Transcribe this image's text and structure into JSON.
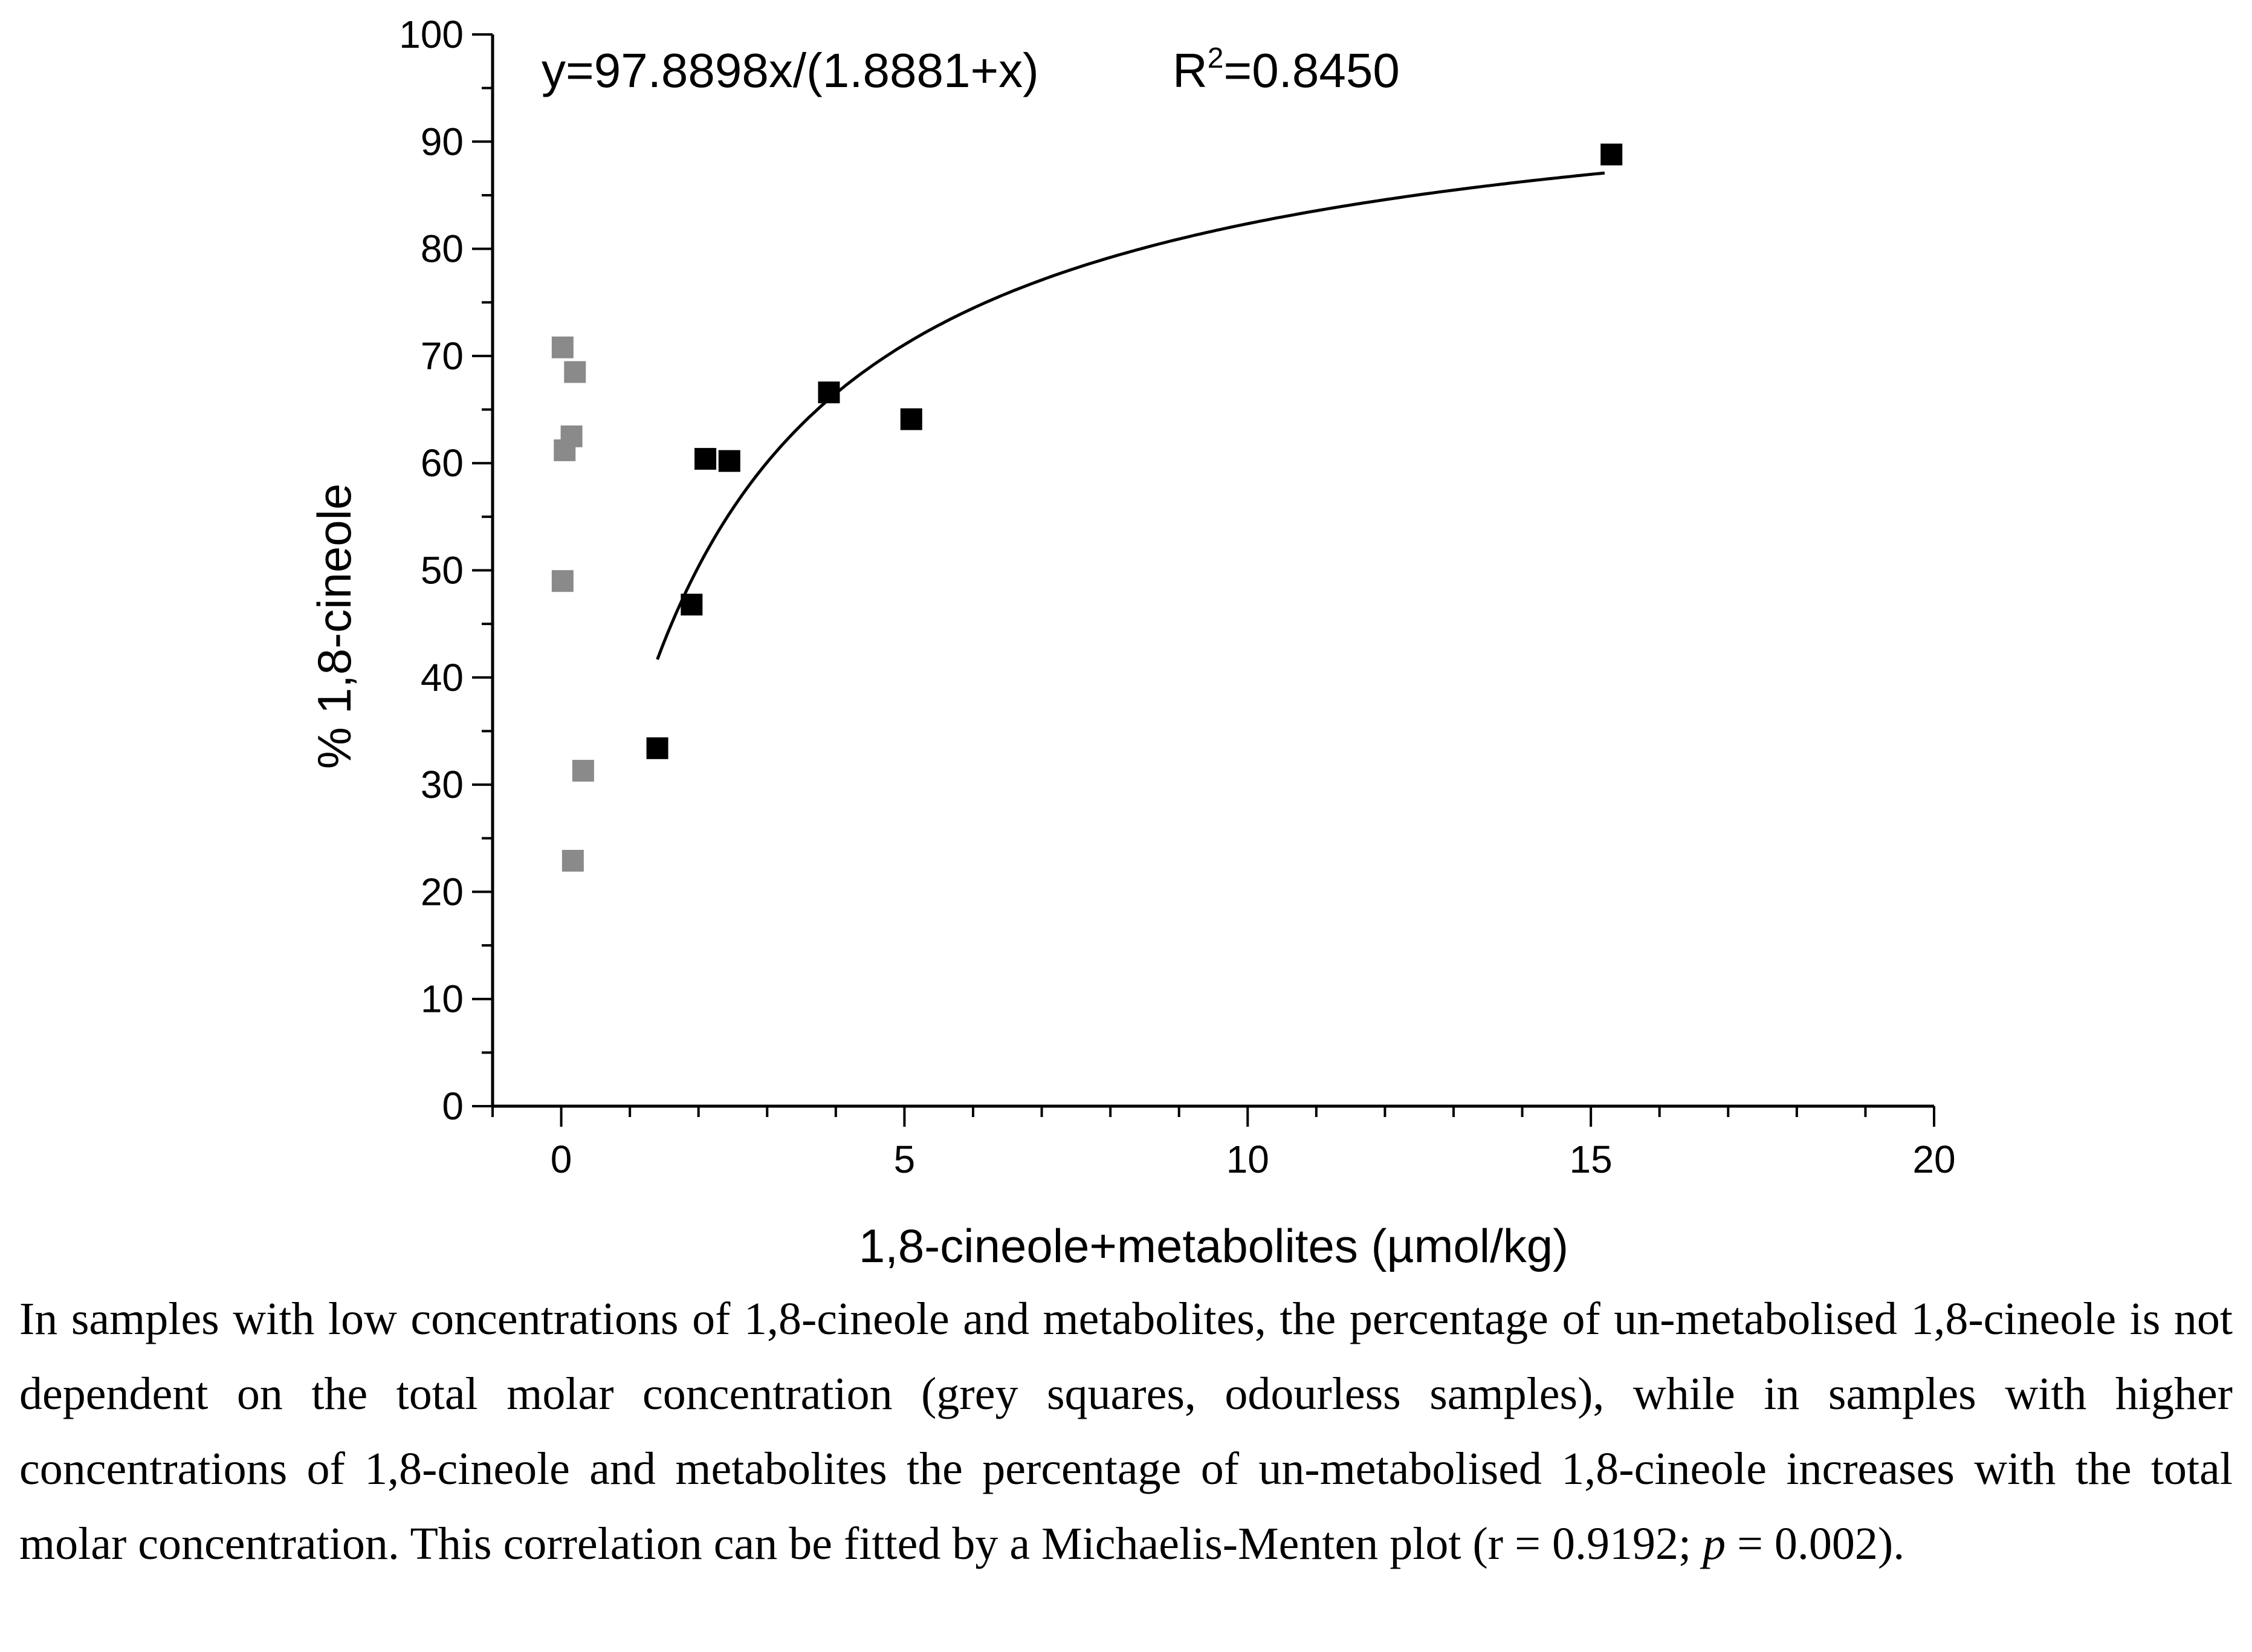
{
  "chart_data": {
    "type": "scatter",
    "title": "",
    "xlabel": "1,8-cineole+metabolites (µmol/kg)",
    "ylabel": "% 1,8-cineole",
    "xlim": [
      -1,
      20
    ],
    "ylim": [
      0,
      100
    ],
    "x_ticks": [
      0,
      5,
      10,
      15,
      20
    ],
    "y_ticks": [
      0,
      10,
      20,
      30,
      40,
      50,
      60,
      70,
      80,
      90,
      100
    ],
    "grid": false,
    "series": [
      {
        "name": "odourless samples",
        "marker": "square",
        "color": "#8a8a8a",
        "points": [
          {
            "x": 0.02,
            "y": 70.8
          },
          {
            "x": 0.2,
            "y": 68.5
          },
          {
            "x": 0.15,
            "y": 62.5
          },
          {
            "x": 0.05,
            "y": 61.2
          },
          {
            "x": 0.02,
            "y": 49.0
          },
          {
            "x": 0.32,
            "y": 31.3
          },
          {
            "x": 0.17,
            "y": 22.9
          }
        ]
      },
      {
        "name": "samples with higher concentrations",
        "marker": "square",
        "color": "#000000",
        "points": [
          {
            "x": 1.4,
            "y": 33.4
          },
          {
            "x": 1.9,
            "y": 46.8
          },
          {
            "x": 2.1,
            "y": 60.4
          },
          {
            "x": 2.45,
            "y": 60.2
          },
          {
            "x": 3.9,
            "y": 66.6
          },
          {
            "x": 5.1,
            "y": 64.1
          },
          {
            "x": 15.3,
            "y": 88.8
          }
        ]
      }
    ],
    "fit": {
      "name": "Michaelis-Menten fit",
      "vmax": 97.8898,
      "km": 1.8881,
      "x_range": [
        1.4,
        15.2
      ],
      "color": "#000000"
    },
    "annotations": {
      "equation": "y=97.8898x/(1.8881+x)",
      "r2_label": "R",
      "r2_sup": "2",
      "r2_value": "=0.8450"
    }
  },
  "caption": {
    "text_before_p": "In samples with low concentrations of 1,8-cineole and metabolites, the percentage of un-metabolised 1,8-cineole is not dependent on the total molar concentration (grey squares, odourless samples), while in samples with higher concentrations of 1,8-cineole and metabolites the percentage of un-metabolised 1,8-cineole increases with the total molar concentration. This correlation can be fitted by a Michaelis-Menten plot (r = 0.9192; ",
    "p_symbol": "p",
    "text_after_p": " = 0.002)."
  }
}
